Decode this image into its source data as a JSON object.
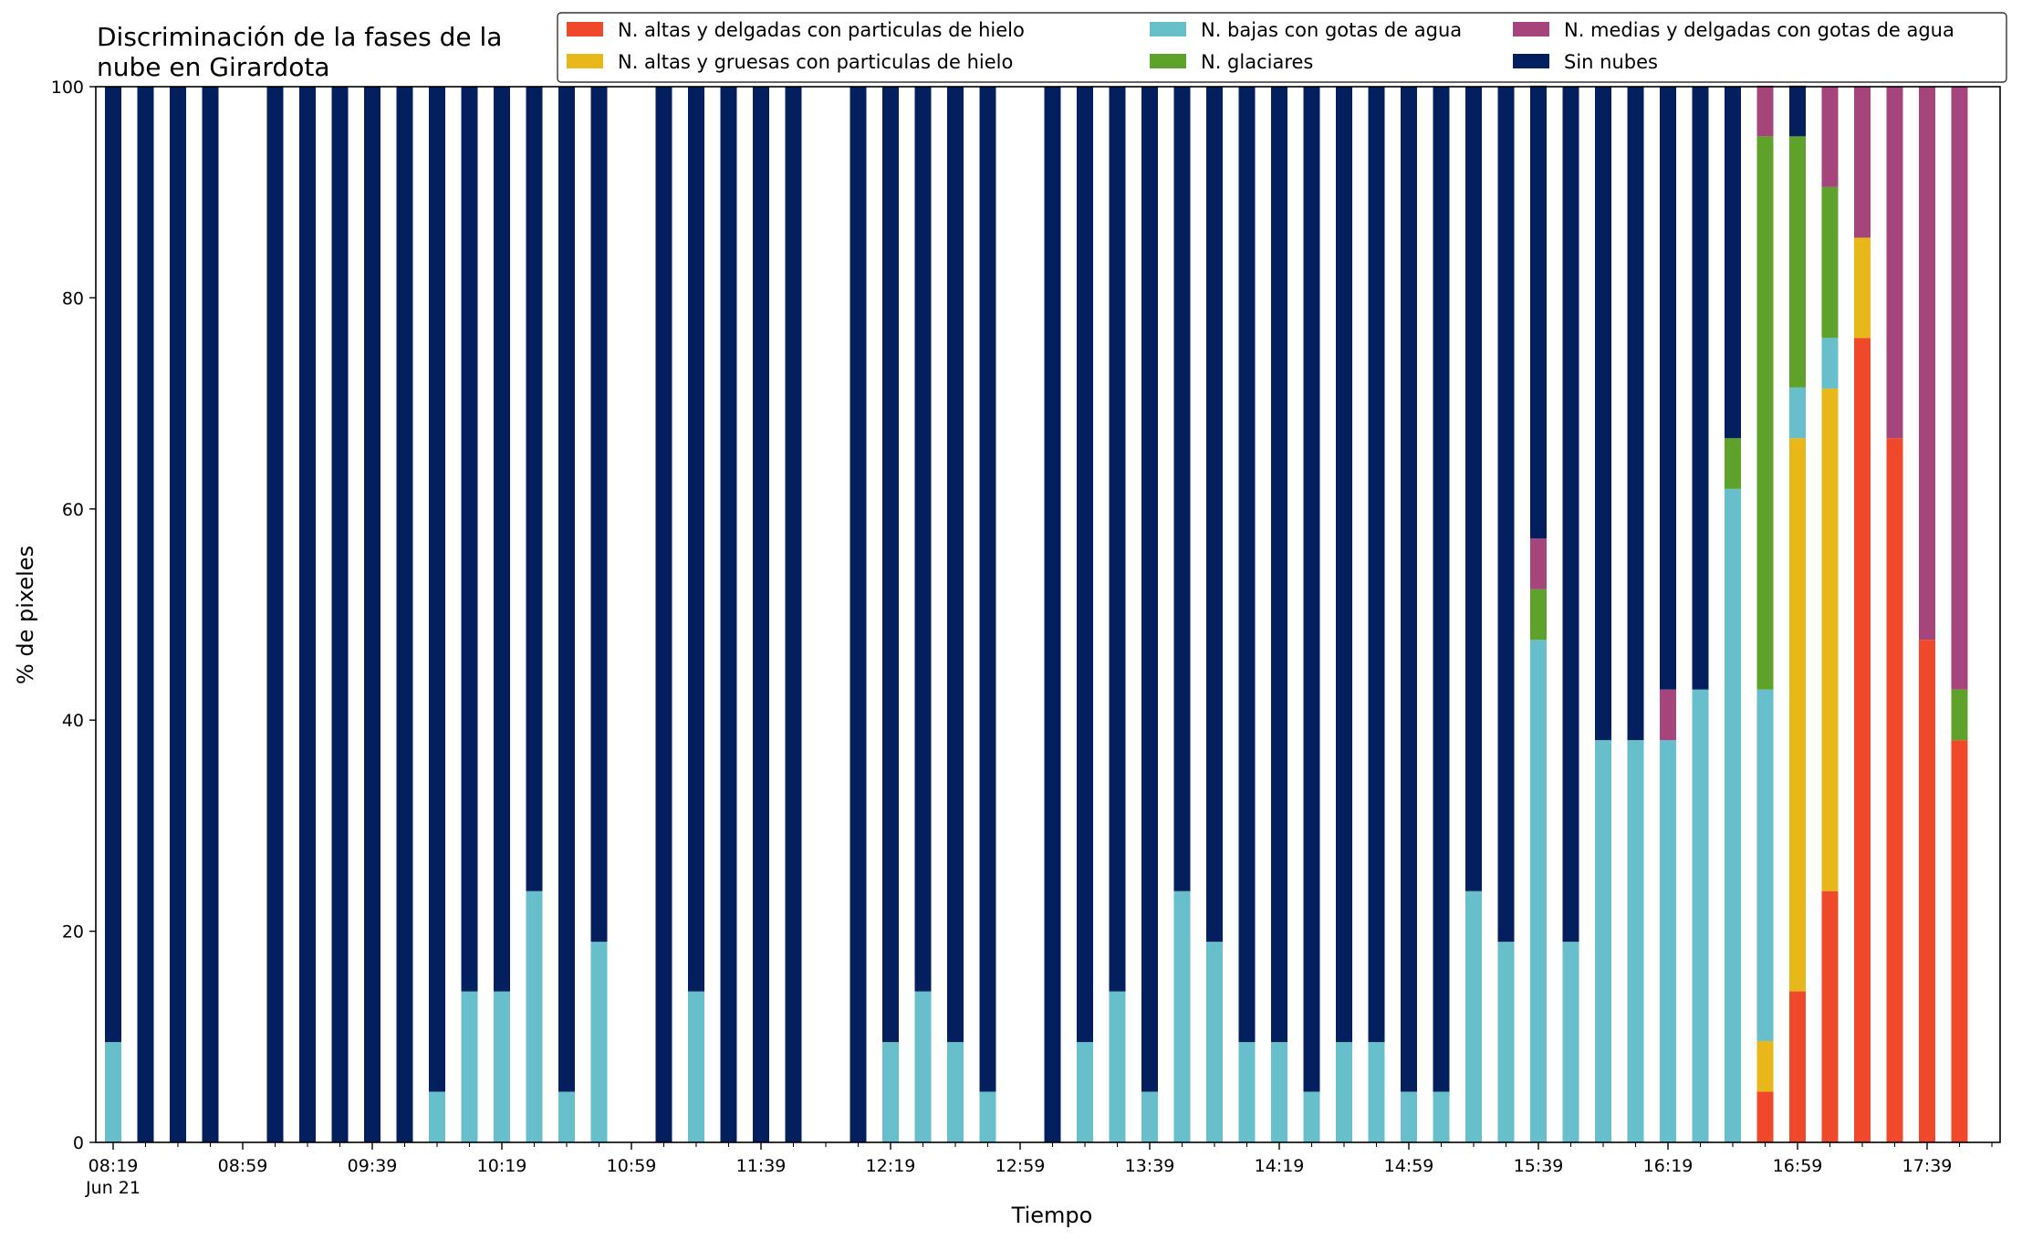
{
  "chart_data": {
    "type": "bar",
    "stacked": true,
    "title": "Discriminación de la fases de la nube en Girardota",
    "title_lines": [
      "Discriminación de la fases de la",
      "nube en Girardota"
    ],
    "xlabel": "Tiempo",
    "ylabel": "% de pixeles",
    "ylim": [
      0,
      100
    ],
    "yticks": [
      "0",
      "20",
      "40",
      "60",
      "80",
      "100"
    ],
    "xticks": [
      "08:19",
      "08:59",
      "09:39",
      "10:19",
      "10:59",
      "11:39",
      "12:19",
      "12:59",
      "13:39",
      "14:19",
      "14:59",
      "15:39",
      "16:19",
      "16:59",
      "17:39"
    ],
    "xtick_sublabel": "Jun 21",
    "x_start": "08:19",
    "x_interval_minutes": 10,
    "legend_position": "top-right",
    "grid": false,
    "categories": [
      "08:19",
      "08:29",
      "08:39",
      "08:49",
      "08:59",
      "09:09",
      "09:19",
      "09:29",
      "09:39",
      "09:49",
      "09:59",
      "10:09",
      "10:19",
      "10:29",
      "10:39",
      "10:49",
      "10:59",
      "11:09",
      "11:19",
      "11:29",
      "11:39",
      "11:49",
      "11:59",
      "12:09",
      "12:19",
      "12:29",
      "12:39",
      "12:49",
      "12:59",
      "13:09",
      "13:19",
      "13:29",
      "13:39",
      "13:49",
      "13:59",
      "14:09",
      "14:19",
      "14:29",
      "14:39",
      "14:49",
      "14:59",
      "15:09",
      "15:19",
      "15:29",
      "15:39",
      "15:49",
      "15:59",
      "16:09",
      "16:19",
      "16:29",
      "16:39",
      "16:49",
      "16:59",
      "17:09",
      "17:19",
      "17:29",
      "17:39",
      "17:49"
    ],
    "series": [
      {
        "name": "N. altas y delgadas con particulas de hielo",
        "color": "#f0482a",
        "values": [
          0,
          0,
          0,
          0,
          null,
          0,
          0,
          0,
          0,
          0,
          0,
          0,
          0,
          0,
          0,
          0,
          null,
          0,
          0,
          0,
          0,
          0,
          null,
          0,
          0,
          0,
          0,
          0,
          null,
          0,
          0,
          0,
          0,
          0,
          0,
          0,
          0,
          0,
          0,
          0,
          0,
          0,
          0,
          0,
          0,
          0,
          0,
          0,
          0,
          0,
          0,
          4.8,
          14.3,
          23.8,
          76.2,
          66.7,
          47.6,
          38.1
        ]
      },
      {
        "name": "N. altas y gruesas con particulas de hielo",
        "color": "#e8b81b",
        "values": [
          0,
          0,
          0,
          0,
          null,
          0,
          0,
          0,
          0,
          0,
          0,
          0,
          0,
          0,
          0,
          0,
          null,
          0,
          0,
          0,
          0,
          0,
          null,
          0,
          0,
          0,
          0,
          0,
          null,
          0,
          0,
          0,
          0,
          0,
          0,
          0,
          0,
          0,
          0,
          0,
          0,
          0,
          0,
          0,
          0,
          0,
          0,
          0,
          0,
          0,
          0,
          4.8,
          52.4,
          47.6,
          9.5,
          0,
          0,
          0
        ]
      },
      {
        "name": "N. bajas con gotas de agua",
        "color": "#66bfcb",
        "values": [
          9.5,
          0,
          0,
          0,
          null,
          0,
          0,
          0,
          0,
          0,
          4.8,
          14.3,
          14.3,
          23.8,
          4.8,
          19.0,
          null,
          0,
          14.3,
          0,
          0,
          0,
          null,
          0,
          9.5,
          14.3,
          9.5,
          4.8,
          null,
          0,
          9.5,
          14.3,
          4.8,
          23.8,
          19.0,
          9.5,
          9.5,
          4.8,
          9.5,
          9.5,
          4.8,
          4.8,
          23.8,
          19.0,
          47.6,
          19.0,
          38.1,
          38.1,
          38.1,
          42.9,
          61.9,
          33.3,
          4.8,
          4.8,
          0,
          0,
          0,
          0
        ]
      },
      {
        "name": "N. glaciares",
        "color": "#5fa22b",
        "values": [
          0,
          0,
          0,
          0,
          null,
          0,
          0,
          0,
          0,
          0,
          0,
          0,
          0,
          0,
          0,
          0,
          null,
          0,
          0,
          0,
          0,
          0,
          null,
          0,
          0,
          0,
          0,
          0,
          null,
          0,
          0,
          0,
          0,
          0,
          0,
          0,
          0,
          0,
          0,
          0,
          0,
          0,
          0,
          0,
          4.8,
          0,
          0,
          0,
          0,
          0,
          4.8,
          52.4,
          23.8,
          14.3,
          0,
          0,
          0,
          4.8
        ]
      },
      {
        "name": "N. medias y delgadas con gotas de agua",
        "color": "#a5457c",
        "values": [
          0,
          0,
          0,
          0,
          null,
          0,
          0,
          0,
          0,
          0,
          0,
          0,
          0,
          0,
          0,
          0,
          null,
          0,
          0,
          0,
          0,
          0,
          null,
          0,
          0,
          0,
          0,
          0,
          null,
          0,
          0,
          0,
          0,
          0,
          0,
          0,
          0,
          0,
          0,
          0,
          0,
          0,
          0,
          0,
          4.8,
          0,
          0,
          0,
          4.8,
          0,
          0,
          4.8,
          0,
          9.5,
          14.3,
          33.3,
          52.4,
          57.1
        ]
      },
      {
        "name": "Sin nubes",
        "color": "#041f5e",
        "values": [
          90.5,
          100,
          100,
          100,
          null,
          100,
          100,
          100,
          100,
          100,
          95.2,
          85.7,
          85.7,
          76.2,
          95.2,
          81.0,
          null,
          100,
          85.7,
          100,
          100,
          100,
          null,
          100,
          90.5,
          85.7,
          90.5,
          95.2,
          null,
          100,
          90.5,
          85.7,
          95.2,
          76.2,
          81.0,
          90.5,
          90.5,
          95.2,
          90.5,
          90.5,
          95.2,
          95.2,
          76.2,
          81.0,
          42.9,
          81.0,
          61.9,
          61.9,
          57.1,
          57.1,
          33.3,
          0,
          4.8,
          0,
          0,
          0,
          0,
          0
        ]
      }
    ]
  }
}
